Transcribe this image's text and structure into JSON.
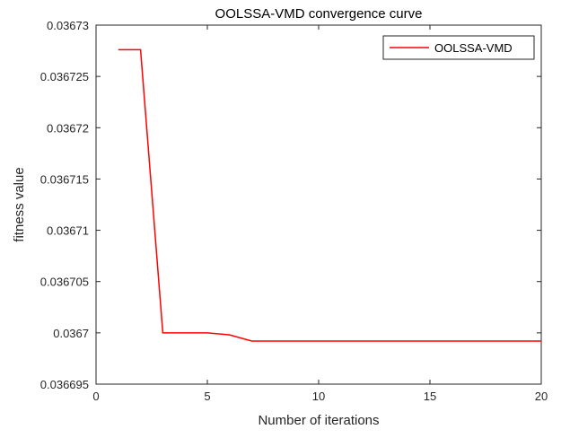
{
  "chart_data": {
    "type": "line",
    "title": "OOLSSA-VMD convergence curve",
    "xlabel": "Number of iterations",
    "ylabel": "fitness value",
    "xlim": [
      0,
      20
    ],
    "ylim": [
      0.036695,
      0.03673
    ],
    "xticks": [
      0,
      5,
      10,
      15,
      20
    ],
    "xtick_labels": [
      "0",
      "5",
      "10",
      "15",
      "20"
    ],
    "yticks": [
      0.036695,
      0.0367,
      0.036705,
      0.03671,
      0.036715,
      0.03672,
      0.036725,
      0.03673
    ],
    "ytick_labels": [
      "0.036695",
      "0.0367",
      "0.036705",
      "0.03671",
      "0.036715",
      "0.03672",
      "0.036725",
      "0.03673"
    ],
    "grid": false,
    "legend_position": "top-right",
    "series": [
      {
        "name": "OOLSSA-VMD",
        "color": "#ff0000",
        "x": [
          1,
          2,
          3,
          4,
          5,
          6,
          7,
          8,
          9,
          10,
          11,
          12,
          13,
          14,
          15,
          16,
          17,
          18,
          19,
          20
        ],
        "y": [
          0.0367276,
          0.0367276,
          0.0367,
          0.0367,
          0.0367,
          0.0366998,
          0.0366992,
          0.0366992,
          0.0366992,
          0.0366992,
          0.0366992,
          0.0366992,
          0.0366992,
          0.0366992,
          0.0366992,
          0.0366992,
          0.0366992,
          0.0366992,
          0.0366992,
          0.0366992
        ]
      }
    ]
  }
}
